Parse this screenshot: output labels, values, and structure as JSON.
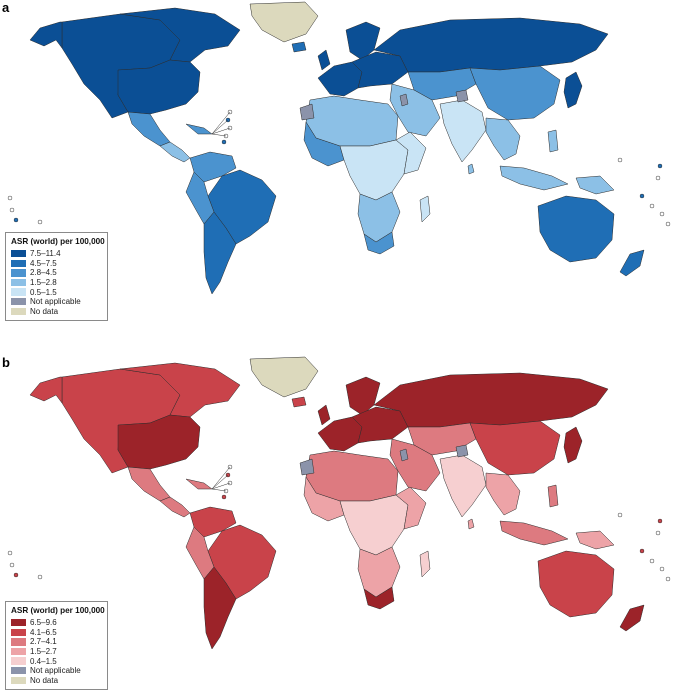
{
  "panels": [
    {
      "letter": "a",
      "legend": {
        "title": "ASR (world) per 100,000",
        "items": [
          {
            "label": "7.5–11.4",
            "color": "#0b4f95"
          },
          {
            "label": "4.5–7.5",
            "color": "#1f6eb5"
          },
          {
            "label": "2.8–4.5",
            "color": "#4b93cf"
          },
          {
            "label": "1.5–2.8",
            "color": "#8cc0e6"
          },
          {
            "label": "0.5–1.5",
            "color": "#c9e4f5"
          },
          {
            "label": "Not applicable",
            "color": "#8b93aa"
          },
          {
            "label": "No data",
            "color": "#dcd9bd"
          }
        ]
      }
    },
    {
      "letter": "b",
      "legend": {
        "title": "ASR (world) per 100,000",
        "items": [
          {
            "label": "6.5–9.6",
            "color": "#9c2329"
          },
          {
            "label": "4.1–6.5",
            "color": "#c9434a"
          },
          {
            "label": "2.7–4.1",
            "color": "#dd7a80"
          },
          {
            "label": "1.5–2.7",
            "color": "#eda3a7"
          },
          {
            "label": "0.4–1.5",
            "color": "#f6cfd0"
          },
          {
            "label": "Not applicable",
            "color": "#8b93aa"
          },
          {
            "label": "No data",
            "color": "#dcd9bd"
          }
        ]
      }
    }
  ]
}
